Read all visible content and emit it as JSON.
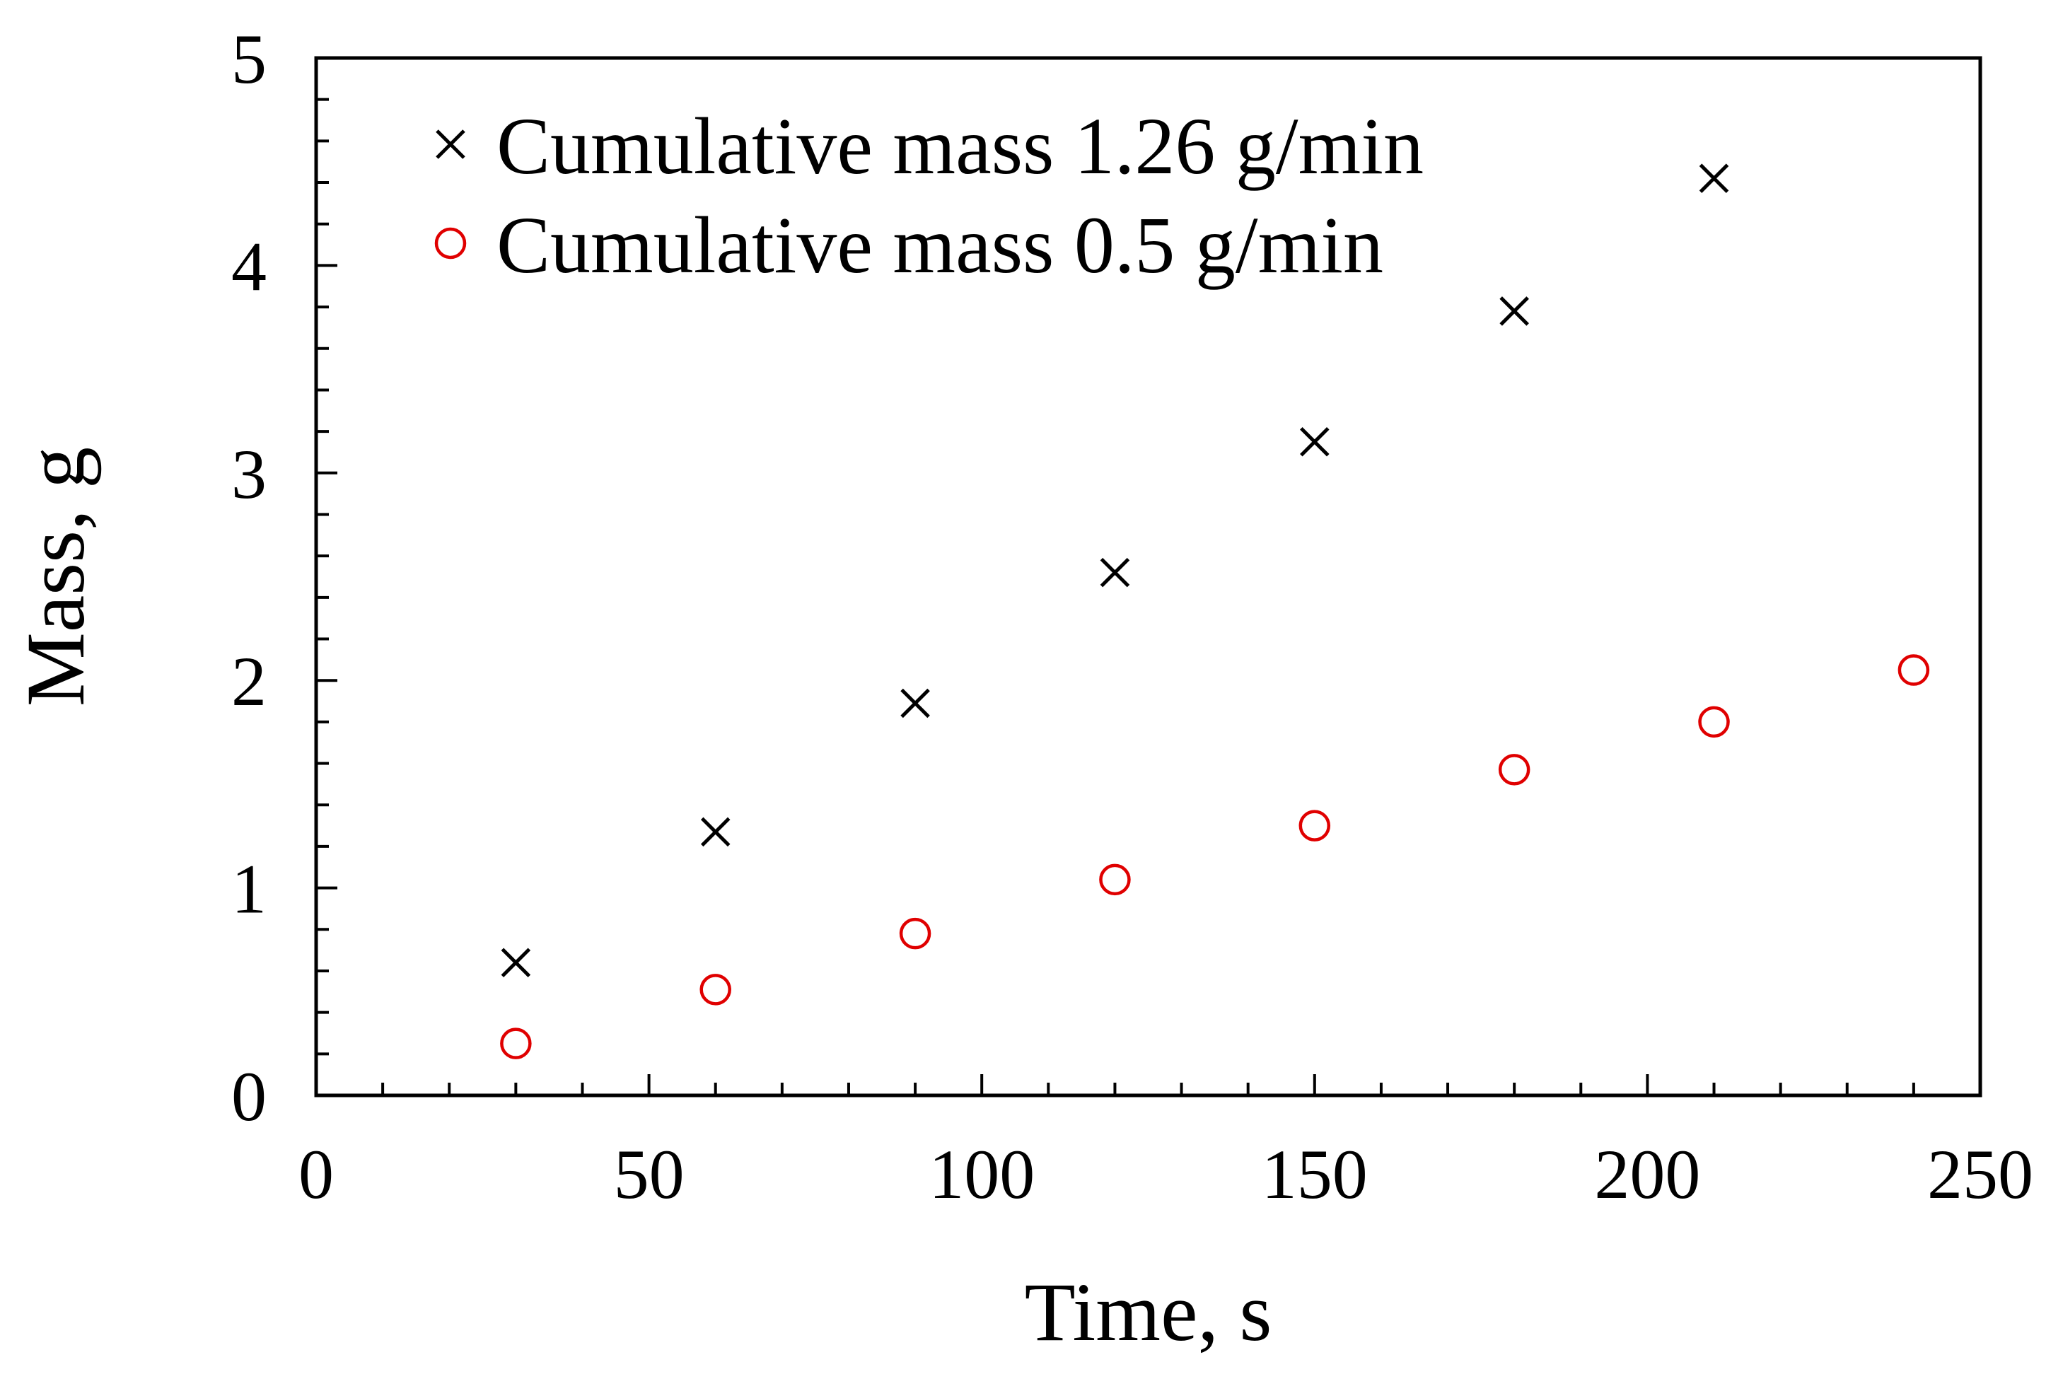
{
  "chart_data": {
    "type": "scatter",
    "title": "",
    "xlabel": "Time, s",
    "ylabel": "Mass, g",
    "xlim": [
      0,
      250
    ],
    "ylim": [
      0,
      5
    ],
    "x_major_ticks": [
      0,
      50,
      100,
      150,
      200,
      250
    ],
    "x_tick_labels": [
      "0",
      "50",
      "100",
      "150",
      "200",
      "250"
    ],
    "x_minor_step": 10,
    "y_major_ticks": [
      0,
      1,
      2,
      3,
      4,
      5
    ],
    "y_tick_labels": [
      "0",
      "1",
      "2",
      "3",
      "4",
      "5"
    ],
    "y_minor_step": 0.2,
    "grid": false,
    "legend_position": "top-left",
    "series": [
      {
        "name": "Cumulative mass 1.26 g/min",
        "marker": "x",
        "color": "#000000",
        "x": [
          30,
          60,
          90,
          120,
          150,
          180,
          210
        ],
        "y": [
          0.64,
          1.27,
          1.89,
          2.52,
          3.15,
          3.78,
          4.42
        ]
      },
      {
        "name": "Cumulative mass 0.5 g/min",
        "marker": "circle",
        "color": "#e00000",
        "x": [
          30,
          60,
          90,
          120,
          150,
          180,
          210,
          240
        ],
        "y": [
          0.25,
          0.51,
          0.78,
          1.04,
          1.3,
          1.57,
          1.8,
          2.05
        ]
      }
    ]
  }
}
